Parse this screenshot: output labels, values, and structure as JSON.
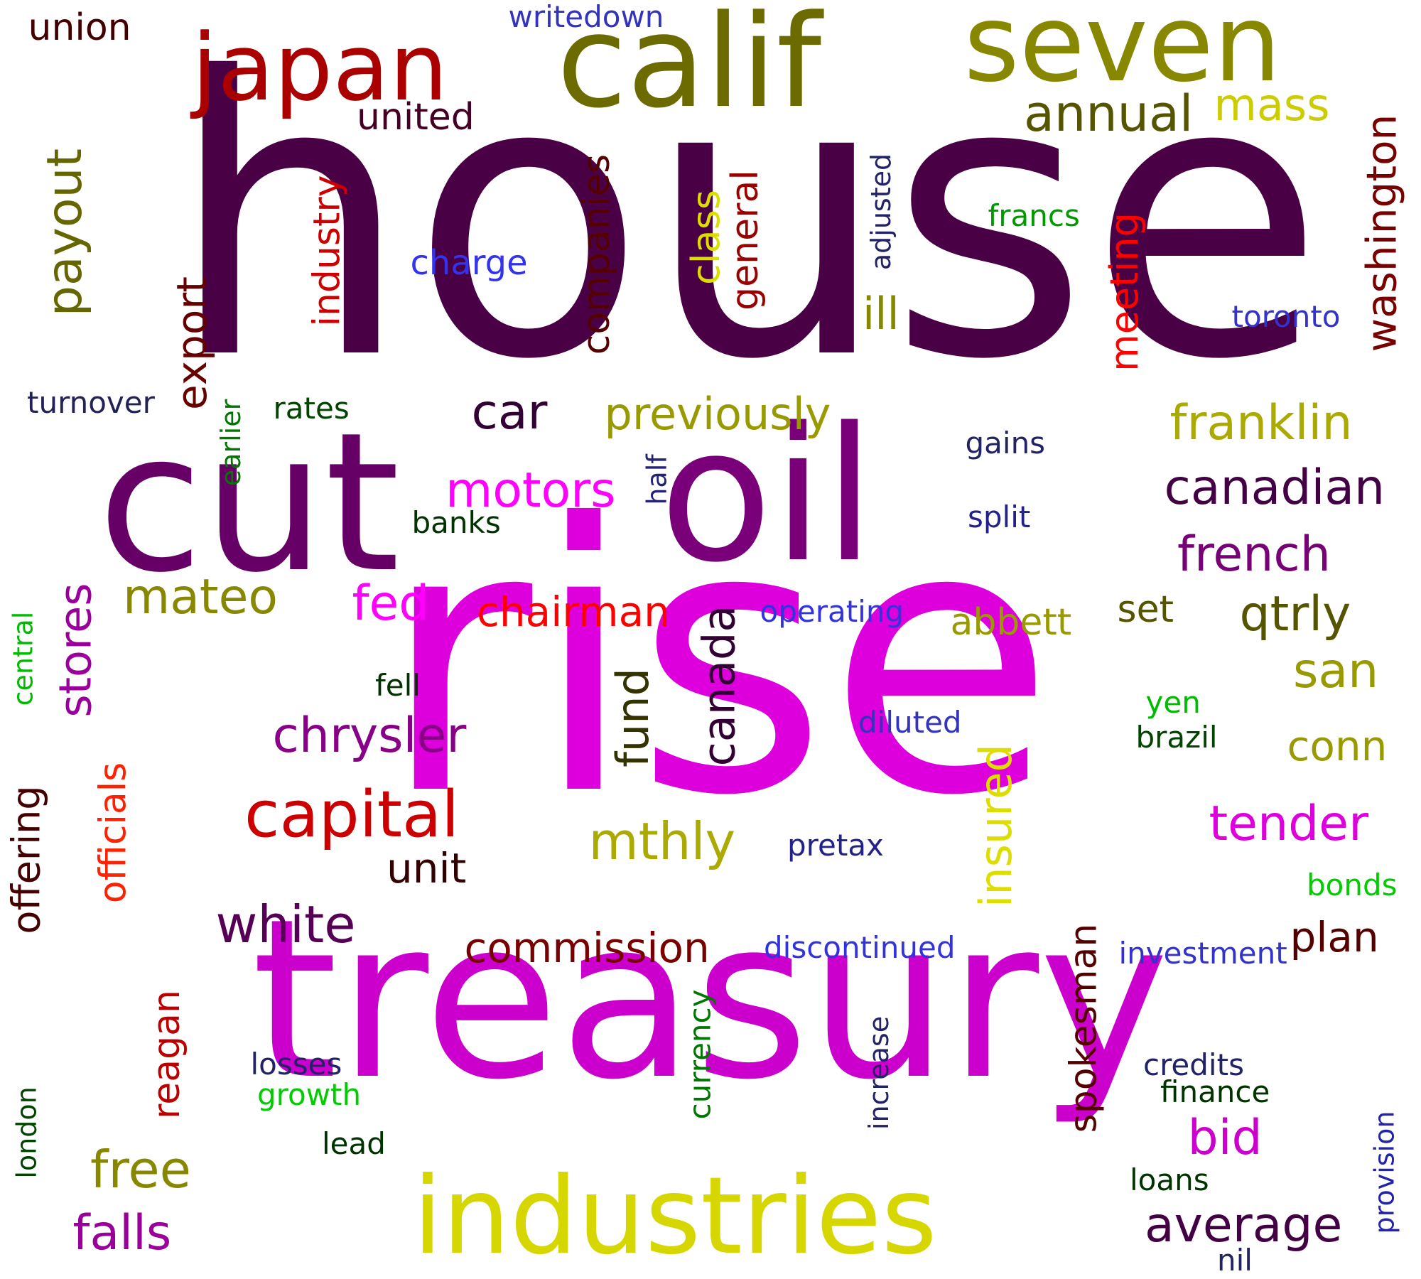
{
  "words": [
    {
      "text": "house",
      "color": "#4a0044",
      "vertical": false
    },
    {
      "text": "rise",
      "color": "#dd00dd",
      "vertical": false
    },
    {
      "text": "treasury",
      "color": "#cc00cc",
      "vertical": false
    },
    {
      "text": "cut",
      "color": "#660066",
      "vertical": false
    },
    {
      "text": "oil",
      "color": "#7a007a",
      "vertical": false
    },
    {
      "text": "calif",
      "color": "#6b6b00",
      "vertical": false
    },
    {
      "text": "seven",
      "color": "#888800",
      "vertical": false
    },
    {
      "text": "japan",
      "color": "#aa0000",
      "vertical": false
    },
    {
      "text": "industries",
      "color": "#d6d600",
      "vertical": false
    },
    {
      "text": "union",
      "color": "#440000",
      "vertical": false
    },
    {
      "text": "writedown",
      "color": "#3333bb",
      "vertical": false
    },
    {
      "text": "united",
      "color": "#440022",
      "vertical": false
    },
    {
      "text": "annual",
      "color": "#555500",
      "vertical": false
    },
    {
      "text": "mass",
      "color": "#cccc00",
      "vertical": false
    },
    {
      "text": "payout",
      "color": "#666600",
      "vertical": true
    },
    {
      "text": "industry",
      "color": "#cc0000",
      "vertical": true
    },
    {
      "text": "export",
      "color": "#660000",
      "vertical": true
    },
    {
      "text": "companies",
      "color": "#550000",
      "vertical": true
    },
    {
      "text": "class",
      "color": "#dddd00",
      "vertical": true
    },
    {
      "text": "general",
      "color": "#990000",
      "vertical": true
    },
    {
      "text": "adjusted",
      "color": "#222266",
      "vertical": true
    },
    {
      "text": "meeting",
      "color": "#ff0000",
      "vertical": true
    },
    {
      "text": "washington",
      "color": "#770000",
      "vertical": true
    },
    {
      "text": "francs",
      "color": "#009900",
      "vertical": false
    },
    {
      "text": "charge",
      "color": "#3333ee",
      "vertical": false
    },
    {
      "text": "toronto",
      "color": "#3333cc",
      "vertical": false
    },
    {
      "text": "ill",
      "color": "#888800",
      "vertical": false
    },
    {
      "text": "turnover",
      "color": "#222255",
      "vertical": false
    },
    {
      "text": "rates",
      "color": "#004400",
      "vertical": false
    },
    {
      "text": "earlier",
      "color": "#007700",
      "vertical": true
    },
    {
      "text": "car",
      "color": "#330033",
      "vertical": false
    },
    {
      "text": "previously",
      "color": "#999900",
      "vertical": false
    },
    {
      "text": "franklin",
      "color": "#aaaa00",
      "vertical": false
    },
    {
      "text": "gains",
      "color": "#222266",
      "vertical": false
    },
    {
      "text": "half",
      "color": "#222277",
      "vertical": true
    },
    {
      "text": "motors",
      "color": "#ff00ff",
      "vertical": false
    },
    {
      "text": "banks",
      "color": "#003300",
      "vertical": false
    },
    {
      "text": "canadian",
      "color": "#440044",
      "vertical": false
    },
    {
      "text": "split",
      "color": "#222288",
      "vertical": false
    },
    {
      "text": "french",
      "color": "#770077",
      "vertical": false
    },
    {
      "text": "mateo",
      "color": "#888800",
      "vertical": false
    },
    {
      "text": "stores",
      "color": "#990099",
      "vertical": true
    },
    {
      "text": "fed",
      "color": "#ff00ff",
      "vertical": false
    },
    {
      "text": "chairman",
      "color": "#ff0000",
      "vertical": false
    },
    {
      "text": "canada",
      "color": "#330033",
      "vertical": true
    },
    {
      "text": "operating",
      "color": "#3333dd",
      "vertical": false
    },
    {
      "text": "abbett",
      "color": "#999900",
      "vertical": false
    },
    {
      "text": "set",
      "color": "#555500",
      "vertical": false
    },
    {
      "text": "qtrly",
      "color": "#555500",
      "vertical": false
    },
    {
      "text": "central",
      "color": "#00bb00",
      "vertical": true
    },
    {
      "text": "fell",
      "color": "#003300",
      "vertical": false
    },
    {
      "text": "chrysler",
      "color": "#880088",
      "vertical": false
    },
    {
      "text": "fund",
      "color": "#333300",
      "vertical": true
    },
    {
      "text": "san",
      "color": "#999900",
      "vertical": false
    },
    {
      "text": "yen",
      "color": "#00bb00",
      "vertical": false
    },
    {
      "text": "diluted",
      "color": "#3333bb",
      "vertical": false
    },
    {
      "text": "brazil",
      "color": "#004400",
      "vertical": false
    },
    {
      "text": "conn",
      "color": "#999900",
      "vertical": false
    },
    {
      "text": "offering",
      "color": "#440000",
      "vertical": true
    },
    {
      "text": "officials",
      "color": "#ff2200",
      "vertical": true
    },
    {
      "text": "capital",
      "color": "#cc0000",
      "vertical": false
    },
    {
      "text": "insured",
      "color": "#dddd00",
      "vertical": true
    },
    {
      "text": "tender",
      "color": "#dd00dd",
      "vertical": false
    },
    {
      "text": "mthly",
      "color": "#aaaa00",
      "vertical": false
    },
    {
      "text": "pretax",
      "color": "#222288",
      "vertical": false
    },
    {
      "text": "unit",
      "color": "#330000",
      "vertical": false
    },
    {
      "text": "bonds",
      "color": "#00cc00",
      "vertical": false
    },
    {
      "text": "white",
      "color": "#550055",
      "vertical": false
    },
    {
      "text": "commission",
      "color": "#770000",
      "vertical": false
    },
    {
      "text": "discontinued",
      "color": "#3333dd",
      "vertical": false
    },
    {
      "text": "investment",
      "color": "#3333cc",
      "vertical": false
    },
    {
      "text": "plan",
      "color": "#550000",
      "vertical": false
    },
    {
      "text": "spokesman",
      "color": "#550000",
      "vertical": true
    },
    {
      "text": "reagan",
      "color": "#bb0000",
      "vertical": true
    },
    {
      "text": "currency",
      "color": "#007700",
      "vertical": true
    },
    {
      "text": "increase",
      "color": "#222266",
      "vertical": true
    },
    {
      "text": "losses",
      "color": "#222266",
      "vertical": false
    },
    {
      "text": "growth",
      "color": "#00cc00",
      "vertical": false
    },
    {
      "text": "credits",
      "color": "#222266",
      "vertical": false
    },
    {
      "text": "finance",
      "color": "#003300",
      "vertical": false
    },
    {
      "text": "london",
      "color": "#004400",
      "vertical": true
    },
    {
      "text": "lead",
      "color": "#003300",
      "vertical": false
    },
    {
      "text": "bid",
      "color": "#cc00cc",
      "vertical": false
    },
    {
      "text": "free",
      "color": "#888800",
      "vertical": false
    },
    {
      "text": "provision",
      "color": "#2222aa",
      "vertical": true
    },
    {
      "text": "loans",
      "color": "#003300",
      "vertical": false
    },
    {
      "text": "average",
      "color": "#440044",
      "vertical": false
    },
    {
      "text": "falls",
      "color": "#990099",
      "vertical": false
    },
    {
      "text": "nil",
      "color": "#222266",
      "vertical": false
    }
  ]
}
